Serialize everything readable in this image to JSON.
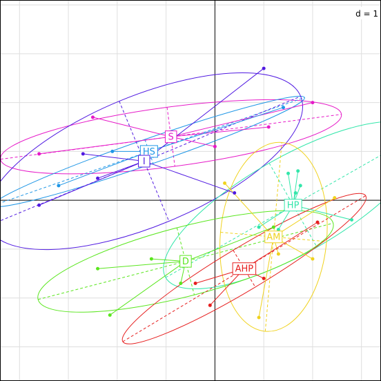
{
  "chart_data": {
    "type": "scatter",
    "title": "",
    "xlabel": "",
    "ylabel": "",
    "scale_label": "d = 1",
    "grid_step": 1,
    "xlim": [
      -4.4,
      3.4
    ],
    "ylim": [
      -3.7,
      4.1
    ],
    "grid": true,
    "axes_through_origin": true,
    "groups": [
      {
        "name": "S",
        "color": "#e619c8",
        "center": [
          -0.9,
          1.3
        ],
        "points": [
          [
            -2.5,
            1.7
          ],
          [
            2.0,
            2.0
          ],
          [
            1.1,
            1.5
          ],
          [
            0.0,
            1.1
          ],
          [
            -3.6,
            0.95
          ]
        ],
        "ellipse": {
          "rx": 3.52,
          "ry": 0.61,
          "angle_deg": 7.5
        }
      },
      {
        "name": "HS",
        "color": "#1e96e6",
        "center": [
          -1.35,
          1.0
        ],
        "points": [
          [
            -2.1,
            1.0
          ],
          [
            1.4,
            1.9
          ],
          [
            -3.2,
            0.3
          ]
        ],
        "ellipse": {
          "rx": 3.37,
          "ry": 0.26,
          "angle_deg": 19.1
        }
      },
      {
        "name": "I",
        "color": "#5019e1",
        "center": [
          -1.45,
          0.8
        ],
        "points": [
          [
            1.0,
            2.7
          ],
          [
            -2.7,
            0.95
          ],
          [
            -2.4,
            0.45
          ],
          [
            -3.6,
            -0.1
          ],
          [
            0.4,
            0.15
          ]
        ],
        "ellipse": {
          "rx": 3.47,
          "ry": 1.33,
          "angle_deg": 22.5
        }
      },
      {
        "name": "HP",
        "color": "#32e6aa",
        "center": [
          1.6,
          -0.1
        ],
        "points": [
          [
            1.5,
            0.55
          ],
          [
            1.7,
            0.6
          ],
          [
            1.75,
            0.3
          ],
          [
            1.65,
            0.15
          ],
          [
            2.8,
            -0.4
          ],
          [
            0.9,
            -0.55
          ],
          [
            1.3,
            -0.6
          ]
        ],
        "ellipse": {
          "rx": 3.0,
          "ry": 0.99,
          "angle_deg": 29.6
        }
      },
      {
        "name": "AM",
        "color": "#f0d21e",
        "center": [
          1.2,
          -0.75
        ],
        "points": [
          [
            0.2,
            0.35
          ],
          [
            2.45,
            0.05
          ],
          [
            1.3,
            -1.1
          ],
          [
            2.0,
            -1.2
          ],
          [
            0.9,
            -2.4
          ]
        ],
        "ellipse": {
          "rx": 1.94,
          "ry": 1.09,
          "angle_deg": 85.0
        }
      },
      {
        "name": "D",
        "color": "#5ae61e",
        "center": [
          -0.6,
          -1.25
        ],
        "points": [
          [
            -1.3,
            -1.2
          ],
          [
            -2.4,
            -1.4
          ],
          [
            -0.7,
            -1.7
          ],
          [
            -2.15,
            -2.35
          ],
          [
            1.2,
            -0.55
          ]
        ],
        "ellipse": {
          "rx": 3.12,
          "ry": 0.71,
          "angle_deg": 14.5
        }
      },
      {
        "name": "AHP",
        "color": "#e61e1e",
        "center": [
          0.6,
          -1.4
        ],
        "points": [
          [
            -0.4,
            -1.7
          ],
          [
            1.0,
            -1.6
          ],
          [
            -0.1,
            -2.15
          ],
          [
            2.1,
            -0.45
          ]
        ],
        "ellipse": {
          "rx": 2.9,
          "ry": 0.44,
          "angle_deg": 31.0
        }
      }
    ]
  }
}
